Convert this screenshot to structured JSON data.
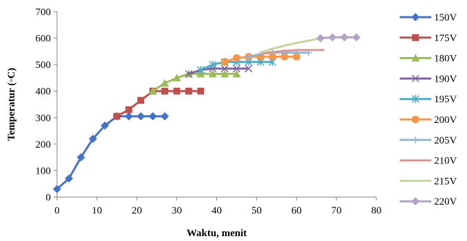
{
  "chart_data": {
    "type": "line",
    "xlabel": "Waktu, menit",
    "ylabel": "Temperatur (◦C)",
    "xlim": [
      0,
      80
    ],
    "ylim": [
      0,
      700
    ],
    "xticks": [
      "0",
      "10",
      "20",
      "30",
      "40",
      "50",
      "60",
      "70",
      "80"
    ],
    "yticks": [
      "0",
      "100",
      "200",
      "300",
      "400",
      "500",
      "600",
      "700"
    ],
    "grid": false,
    "legend_position": "right",
    "series": [
      {
        "name": "150V",
        "color": "#4472C4",
        "marker": "diamond",
        "x": [
          0,
          3,
          6,
          9,
          12,
          15,
          18,
          21,
          24,
          27
        ],
        "y": [
          30,
          70,
          150,
          220,
          270,
          305,
          305,
          305,
          305,
          305
        ]
      },
      {
        "name": "175V",
        "color": "#C0504D",
        "marker": "square",
        "x": [
          15,
          18,
          21,
          24,
          27,
          30,
          33,
          36
        ],
        "y": [
          305,
          330,
          365,
          400,
          400,
          400,
          400,
          400
        ]
      },
      {
        "name": "180V",
        "color": "#9BBB59",
        "marker": "triangle",
        "x": [
          24,
          27,
          30,
          33,
          36,
          39,
          42,
          45
        ],
        "y": [
          400,
          430,
          450,
          465,
          465,
          465,
          465,
          465
        ]
      },
      {
        "name": "190V",
        "color": "#8064A2",
        "marker": "x",
        "x": [
          33,
          36,
          39,
          42,
          45,
          48
        ],
        "y": [
          465,
          480,
          485,
          485,
          485,
          485
        ]
      },
      {
        "name": "195V",
        "color": "#4BACC6",
        "marker": "asterisk",
        "x": [
          36,
          39,
          42,
          45,
          48,
          51,
          54
        ],
        "y": [
          480,
          500,
          510,
          510,
          510,
          510,
          510
        ]
      },
      {
        "name": "200V",
        "color": "#F79646",
        "marker": "circle",
        "x": [
          42,
          45,
          48,
          51,
          54,
          57,
          60
        ],
        "y": [
          510,
          525,
          530,
          530,
          530,
          530,
          530
        ]
      },
      {
        "name": "205V",
        "color": "#95B3D7",
        "marker": "plus",
        "x": [
          48,
          51,
          54,
          57,
          60,
          63
        ],
        "y": [
          530,
          540,
          545,
          545,
          545,
          545
        ]
      },
      {
        "name": "210V",
        "color": "#D99694",
        "marker": "none",
        "x": [
          51,
          54,
          57,
          60,
          63,
          66,
          67
        ],
        "y": [
          540,
          548,
          552,
          555,
          555,
          555,
          555
        ]
      },
      {
        "name": "215V",
        "color": "#C3D69B",
        "marker": "none",
        "x": [
          51,
          54,
          57,
          60,
          63,
          66
        ],
        "y": [
          545,
          560,
          572,
          582,
          590,
          600
        ]
      },
      {
        "name": "220V",
        "color": "#B3A2C7",
        "marker": "diamond",
        "x": [
          66,
          69,
          72,
          75
        ],
        "y": [
          600,
          603,
          603,
          603
        ]
      }
    ]
  }
}
